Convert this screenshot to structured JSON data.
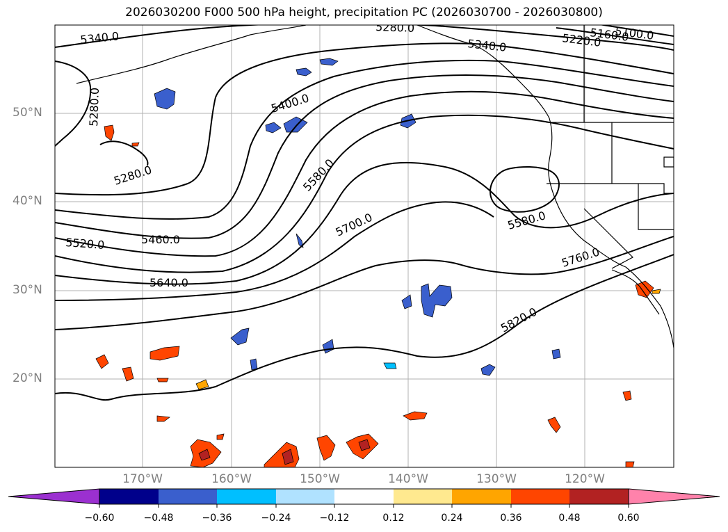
{
  "title": "2026030200 F000 500 hPa height, precipitation PC (2026030700 - 2026030800)",
  "lat_labels": [
    "50°N",
    "40°N",
    "30°N",
    "20°N"
  ],
  "lon_labels": [
    "170°W",
    "160°W",
    "150°W",
    "140°W",
    "130°W",
    "120°W"
  ],
  "contour_labels": [
    "5340.0",
    "5280.0",
    "5280.0",
    "5280.0",
    "5340.0",
    "5220.0",
    "5160.0",
    "5100.0",
    "5400.0",
    "5580.0",
    "5520.0",
    "5460.0",
    "5700.0",
    "5580.0",
    "5640.0",
    "5760.0",
    "5820.0"
  ],
  "colorbar": {
    "tick_labels": [
      "−0.60",
      "−0.48",
      "−0.36",
      "−0.24",
      "−0.12",
      "0.12",
      "0.24",
      "0.36",
      "0.48",
      "0.60"
    ],
    "colors": [
      "#9b30d0",
      "#00008b",
      "#3a5fcd",
      "#00bfff",
      "#b0e2ff",
      "#ffffff",
      "#ffe98f",
      "#ffa500",
      "#ff4500",
      "#b22222",
      "#ff82ab"
    ]
  },
  "colors": {
    "coast": "#000000",
    "contour": "#000000",
    "grid": "#b0b0b0",
    "label": "#808080"
  }
}
